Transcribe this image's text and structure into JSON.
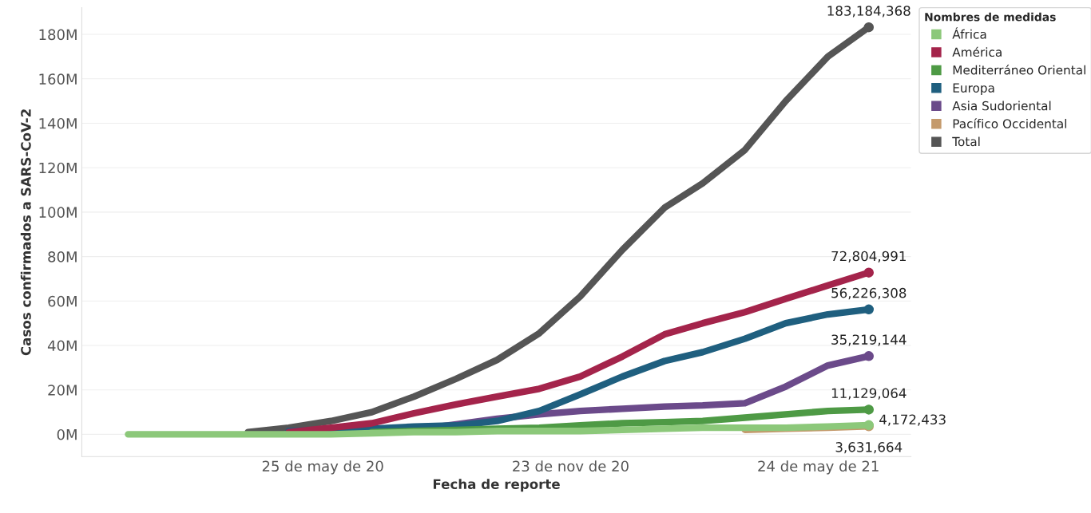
{
  "chart_data": {
    "type": "line",
    "xlabel": "Fecha de reporte",
    "ylabel": "Casos confirmados a SARS-CoV-2",
    "legend_title": "Nombres de medidas",
    "legend": "top right",
    "grid": "y",
    "line_style": "solid",
    "x": [
      "2020-01-03",
      "2020-01-31",
      "2020-02-29",
      "2020-03-31",
      "2020-04-30",
      "2020-05-31",
      "2020-06-30",
      "2020-07-31",
      "2020-08-31",
      "2020-09-30",
      "2020-10-31",
      "2020-11-30",
      "2020-12-31",
      "2021-01-31",
      "2021-02-28",
      "2021-03-31",
      "2021-04-30",
      "2021-05-31",
      "2021-06-30"
    ],
    "xlim": [
      "2019-11-30",
      "2021-07-31"
    ],
    "xticks": [
      {
        "value": "2020-05-25",
        "label": "25 de may de 20"
      },
      {
        "value": "2020-11-23",
        "label": "23 de nov de 20"
      },
      {
        "value": "2021-05-24",
        "label": "24 de may de 21"
      }
    ],
    "ylim": [
      -10000000,
      192000000
    ],
    "yticks": [
      {
        "value": 0,
        "label": "0M"
      },
      {
        "value": 20000000,
        "label": "20M"
      },
      {
        "value": 40000000,
        "label": "40M"
      },
      {
        "value": 60000000,
        "label": "60M"
      },
      {
        "value": 80000000,
        "label": "80M"
      },
      {
        "value": 100000000,
        "label": "100M"
      },
      {
        "value": 120000000,
        "label": "120M"
      },
      {
        "value": 140000000,
        "label": "140M"
      },
      {
        "value": 160000000,
        "label": "160M"
      },
      {
        "value": 180000000,
        "label": "180M"
      }
    ],
    "series": [
      {
        "name": "África",
        "color": "#8cc87a",
        "values": [
          0,
          0,
          0,
          0,
          0,
          0,
          500000,
          1000000,
          1000000,
          1500000,
          1500000,
          1500000,
          2000000,
          2500000,
          3000000,
          3000000,
          3000000,
          3500000,
          4172433
        ],
        "value_labels": [
          null,
          null,
          null,
          null,
          null,
          null,
          null,
          null,
          null,
          null,
          null,
          null,
          null,
          null,
          null,
          null,
          null,
          null,
          "4,172,433"
        ]
      },
      {
        "name": "América",
        "color": "#a4244b",
        "values": [
          null,
          null,
          null,
          null,
          1000000,
          3000000,
          5000000,
          9500000,
          13500000,
          17000000,
          20500000,
          26000000,
          35000000,
          45000000,
          50000000,
          55000000,
          61000000,
          67000000,
          72804991
        ],
        "value_labels": [
          null,
          null,
          null,
          null,
          null,
          null,
          null,
          null,
          null,
          null,
          null,
          null,
          null,
          null,
          null,
          null,
          null,
          null,
          "72,804,991"
        ]
      },
      {
        "name": "Mediterráneo Oriental",
        "color": "#4e9a45",
        "values": [
          null,
          null,
          null,
          null,
          null,
          null,
          1000000,
          1500000,
          2000000,
          2500000,
          3000000,
          4000000,
          5000000,
          5500000,
          6000000,
          7500000,
          9000000,
          10500000,
          11129064
        ],
        "value_labels": [
          null,
          null,
          null,
          null,
          null,
          null,
          null,
          null,
          null,
          null,
          null,
          null,
          null,
          null,
          null,
          null,
          null,
          null,
          "11,129,064"
        ]
      },
      {
        "name": "Europa",
        "color": "#1f5f7f",
        "values": [
          null,
          null,
          null,
          null,
          1500000,
          2000000,
          2500000,
          3500000,
          4000000,
          6000000,
          10500000,
          18000000,
          26000000,
          33000000,
          37000000,
          43000000,
          50000000,
          54000000,
          56226308
        ],
        "value_labels": [
          null,
          null,
          null,
          null,
          null,
          null,
          null,
          null,
          null,
          null,
          null,
          null,
          null,
          null,
          null,
          null,
          null,
          null,
          "56,226,308"
        ]
      },
      {
        "name": "Asia Sudoriental",
        "color": "#6b4a8a",
        "values": [
          null,
          null,
          null,
          null,
          null,
          null,
          1000000,
          2000000,
          4500000,
          7000000,
          9000000,
          10500000,
          11500000,
          12500000,
          13000000,
          14000000,
          21500000,
          31000000,
          35219144
        ],
        "value_labels": [
          null,
          null,
          null,
          null,
          null,
          null,
          null,
          null,
          null,
          null,
          null,
          null,
          null,
          null,
          null,
          null,
          null,
          null,
          "35,219,144"
        ]
      },
      {
        "name": "Pacífico Occidental",
        "color": "#c49a6c",
        "values": [
          null,
          null,
          null,
          null,
          null,
          null,
          null,
          null,
          null,
          null,
          null,
          null,
          null,
          null,
          null,
          2000000,
          2500000,
          3000000,
          3631664
        ],
        "value_labels": [
          null,
          null,
          null,
          null,
          null,
          null,
          null,
          null,
          null,
          null,
          null,
          null,
          null,
          null,
          null,
          null,
          null,
          null,
          "3,631,664"
        ]
      },
      {
        "name": "Total",
        "color": "#555555",
        "values": [
          null,
          null,
          null,
          1000000,
          3000000,
          6000000,
          10000000,
          17000000,
          25000000,
          33500000,
          45500000,
          62000000,
          83000000,
          102000000,
          113000000,
          128000000,
          150000000,
          170000000,
          183184368
        ],
        "value_labels": [
          null,
          null,
          null,
          null,
          null,
          null,
          null,
          null,
          null,
          null,
          null,
          null,
          null,
          null,
          null,
          null,
          null,
          null,
          "183,184,368"
        ]
      }
    ]
  }
}
